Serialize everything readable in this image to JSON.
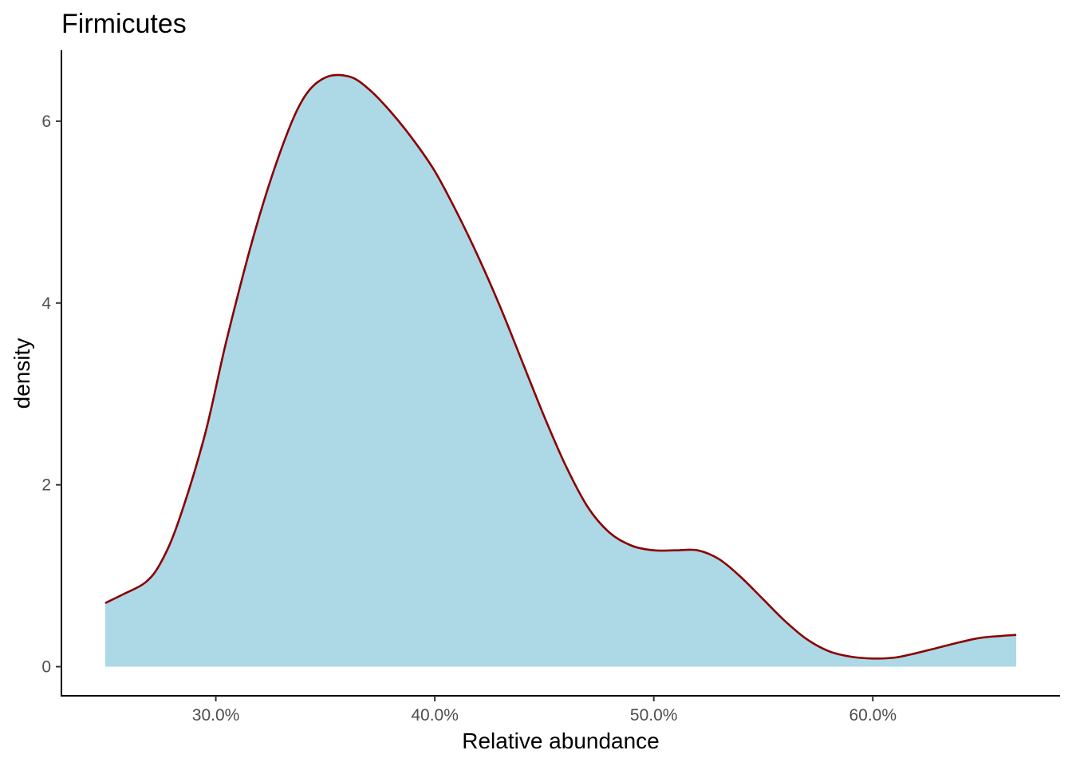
{
  "chart_data": {
    "type": "area",
    "title": "Firmicutes",
    "xlabel": "Relative abundance",
    "ylabel": "density",
    "x_tick_values": [
      0.3,
      0.4,
      0.5,
      0.6
    ],
    "x_tick_labels": [
      "30.0%",
      "40.0%",
      "50.0%",
      "60.0%"
    ],
    "y_tick_values": [
      0,
      2,
      4,
      6
    ],
    "y_tick_labels": [
      "0",
      "2",
      "4",
      "6"
    ],
    "xlim": [
      0.2295,
      0.6855
    ],
    "ylim": [
      -0.32,
      6.78
    ],
    "grid": false,
    "legend": "none",
    "fill_color": "#add8e6",
    "line_color": "#8b0000",
    "x": [
      0.2495,
      0.258,
      0.268,
      0.275,
      0.283,
      0.295,
      0.305,
      0.318,
      0.33,
      0.34,
      0.35,
      0.361,
      0.37,
      0.38,
      0.39,
      0.4,
      0.41,
      0.42,
      0.43,
      0.44,
      0.45,
      0.46,
      0.47,
      0.48,
      0.49,
      0.5,
      0.51,
      0.52,
      0.53,
      0.54,
      0.55,
      0.56,
      0.57,
      0.58,
      0.59,
      0.6,
      0.61,
      0.62,
      0.63,
      0.64,
      0.65,
      0.6655
    ],
    "y": [
      0.7,
      0.8,
      0.93,
      1.15,
      1.6,
      2.55,
      3.6,
      4.8,
      5.7,
      6.25,
      6.48,
      6.49,
      6.35,
      6.1,
      5.8,
      5.45,
      5.0,
      4.5,
      3.95,
      3.35,
      2.75,
      2.2,
      1.75,
      1.47,
      1.33,
      1.28,
      1.28,
      1.28,
      1.18,
      0.98,
      0.74,
      0.5,
      0.3,
      0.17,
      0.11,
      0.09,
      0.1,
      0.15,
      0.21,
      0.27,
      0.32,
      0.35
    ]
  }
}
